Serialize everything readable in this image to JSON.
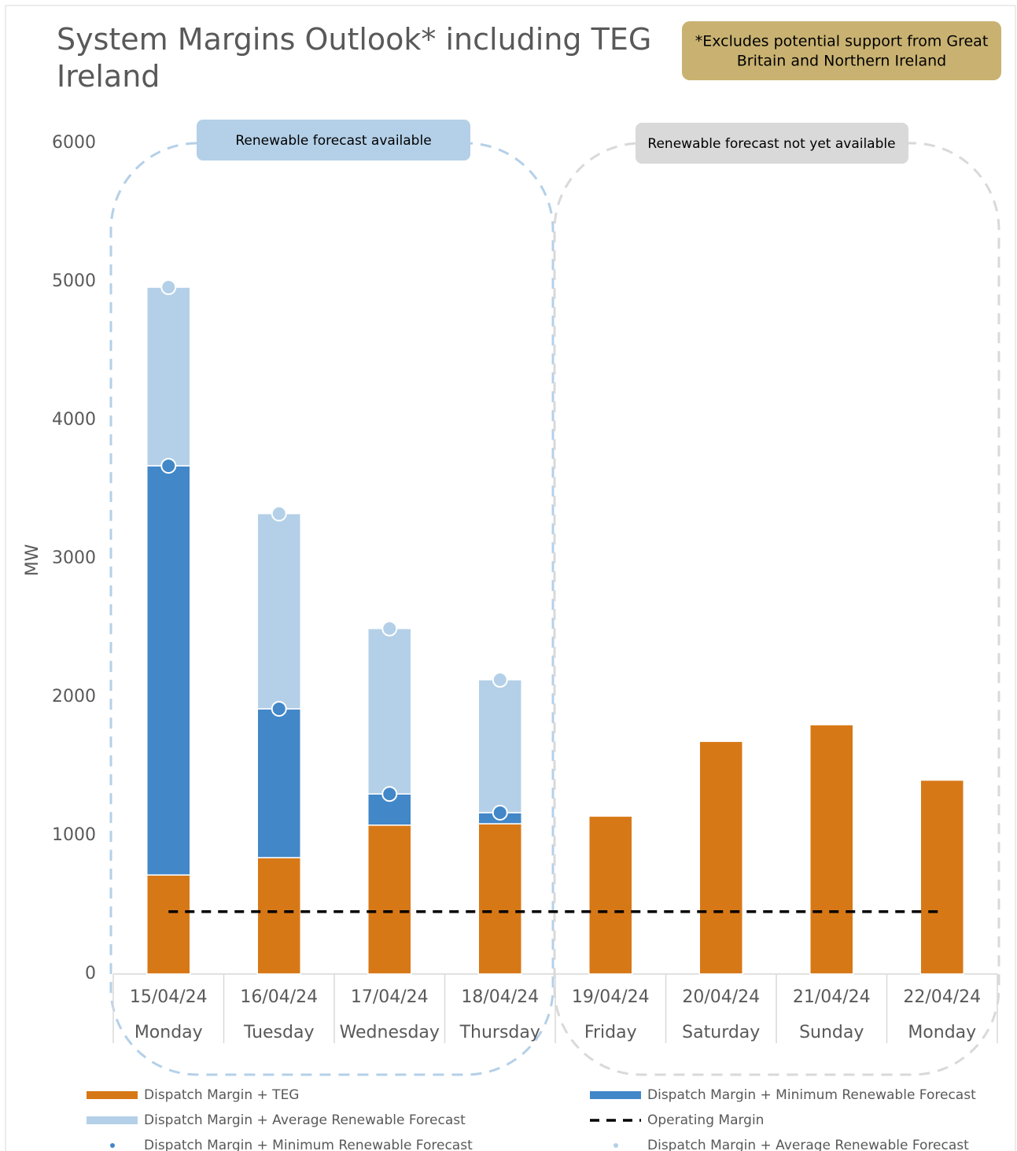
{
  "chart_data": {
    "type": "bar",
    "title": "System Margins Outlook* including TEG Ireland",
    "note": "*Excludes potential support from Great Britain and Northern Ireland",
    "annotations": [
      "Renewable forecast available",
      "Renewable forecast not yet available"
    ],
    "y_label": "MW",
    "categories": [
      "15/04/24",
      "16/04/24",
      "17/04/24",
      "18/04/24",
      "19/04/24",
      "20/04/24",
      "21/04/24",
      "22/04/24"
    ],
    "days": [
      "Monday",
      "Tuesday",
      "Wednesday",
      "Thursday",
      "Friday",
      "Saturday",
      "Sunday",
      "Monday"
    ],
    "ylim": [
      0,
      6000
    ],
    "yticks": [
      0,
      1000,
      2000,
      3000,
      4000,
      5000,
      6000
    ],
    "series": [
      {
        "name": "Dispatch Margin + TEG",
        "kind": "bar",
        "color": "#d77817",
        "values": [
          715,
          840,
          1075,
          1085,
          1140,
          1680,
          1800,
          1400
        ]
      },
      {
        "name": "Dispatch Margin + Minimum Renewable Forecast",
        "kind": "bar",
        "color": "#4287c8",
        "values": [
          2955,
          1075,
          225,
          80,
          null,
          null,
          null,
          null
        ]
      },
      {
        "name": "Dispatch Margin + Average Renewable Forecast",
        "kind": "bar",
        "color": "#b4d0e8",
        "values": [
          1290,
          1410,
          1195,
          960,
          null,
          null,
          null,
          null
        ]
      },
      {
        "name": "Operating Margin",
        "kind": "line",
        "color": "#000000",
        "values": [
          450,
          450,
          450,
          450,
          450,
          450,
          450,
          450
        ]
      },
      {
        "name": "Dispatch Margin + Minimum Renewable Forecast",
        "kind": "marker",
        "color": "#4287c8",
        "values": [
          3670,
          1915,
          1300,
          1165,
          null,
          null,
          null,
          null
        ]
      },
      {
        "name": "Dispatch Margin + Average Renewable Forecast",
        "kind": "marker",
        "color": "#b4d0e8",
        "values": [
          4960,
          3325,
          2495,
          2125,
          null,
          null,
          null,
          null
        ]
      }
    ]
  }
}
